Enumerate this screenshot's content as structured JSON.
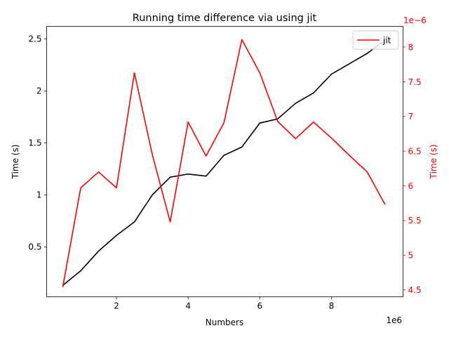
{
  "chart_data": {
    "type": "line",
    "title": "Running time difference via using jit",
    "xlabel": "Numbers",
    "x_offset_text": "1e6",
    "x_scale": 1000000,
    "xlim": [
      0.05,
      10.0
    ],
    "xticks": [
      2,
      4,
      6,
      8
    ],
    "x": [
      0.5,
      1.0,
      1.5,
      2.0,
      2.5,
      3.0,
      3.5,
      4.0,
      4.5,
      5.0,
      5.5,
      6.0,
      6.5,
      7.0,
      7.5,
      8.0,
      8.5,
      9.0,
      9.5
    ],
    "left_axis": {
      "label": "Time (s)",
      "ylim": [
        0.02,
        2.62
      ],
      "ticks": [
        0.5,
        1.0,
        1.5,
        2.0,
        2.5
      ],
      "color": "#000000"
    },
    "right_axis": {
      "label": "Time (s)",
      "offset_text": "1e−6",
      "scale": 1e-06,
      "ylim": [
        4.4,
        8.3
      ],
      "ticks": [
        4.5,
        5.0,
        5.5,
        6.0,
        6.5,
        7.0,
        7.5,
        8.0
      ],
      "color": "#ff0000"
    },
    "series": [
      {
        "axis": "left",
        "color": "#000000",
        "values": [
          0.13,
          0.27,
          0.46,
          0.61,
          0.74,
          1.0,
          1.17,
          1.2,
          1.18,
          1.38,
          1.46,
          1.69,
          1.73,
          1.88,
          1.98,
          2.16,
          2.26,
          2.36,
          2.49
        ]
      },
      {
        "name": "jit",
        "axis": "right",
        "color": "#ff0000",
        "values": [
          4.54,
          5.97,
          6.2,
          5.97,
          7.63,
          6.45,
          5.48,
          6.92,
          6.43,
          6.91,
          8.11,
          7.63,
          6.93,
          6.68,
          6.92,
          6.69,
          6.44,
          6.2,
          5.73
        ]
      }
    ],
    "legend": {
      "placement": "upper-right",
      "entries": [
        "jit"
      ]
    },
    "grid": false
  }
}
